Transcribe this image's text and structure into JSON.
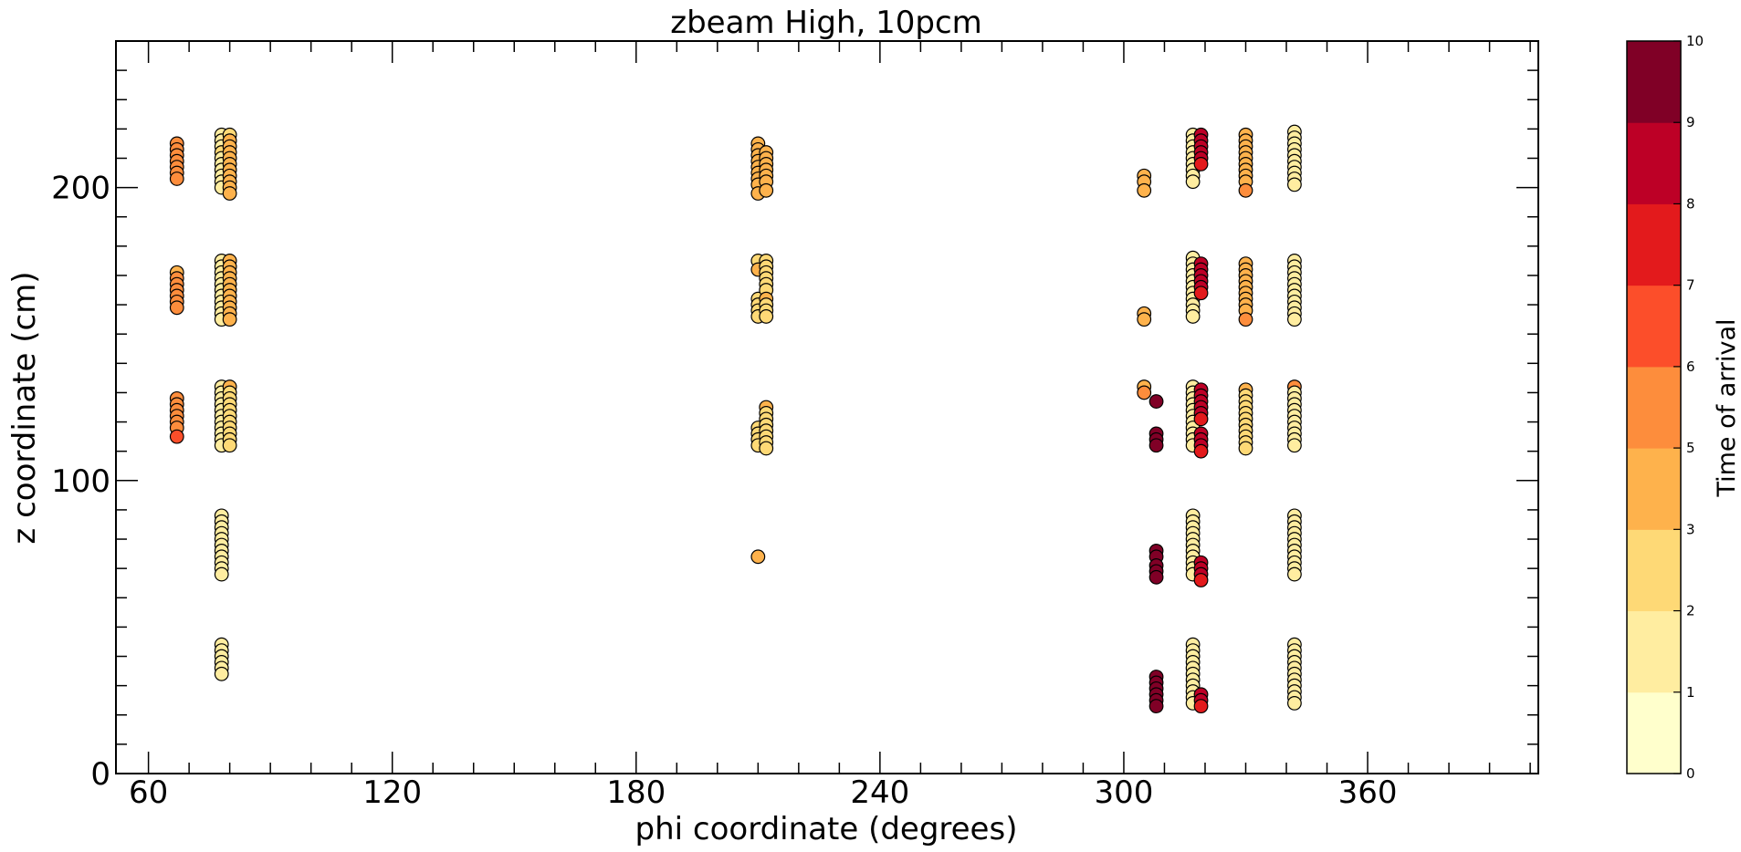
{
  "chart_data": {
    "type": "scatter",
    "title": "zbeam High, 10pcm",
    "xlabel": "phi coordinate (degrees)",
    "ylabel": "z coordinate (cm)",
    "xlim": [
      52,
      402
    ],
    "ylim": [
      0,
      250
    ],
    "x_ticks": [
      60,
      120,
      180,
      240,
      300,
      360
    ],
    "y_ticks": [
      0,
      100,
      200
    ],
    "grid": false,
    "legend": "none",
    "colorbar": {
      "label": "Time of arrival",
      "range": [
        0,
        10
      ],
      "boundaries": [
        0,
        1,
        2,
        3,
        5,
        6,
        7,
        8,
        9,
        10
      ],
      "tick_labels": [
        "0",
        "1",
        "2",
        "3",
        "5",
        "6",
        "7",
        "8",
        "9",
        "10"
      ],
      "colors": [
        "#ffffcc",
        "#ffeda0",
        "#fed976",
        "#feb24c",
        "#fd8d3c",
        "#fc4e2a",
        "#e31a1c",
        "#bd0026",
        "#800026"
      ]
    },
    "points": [
      [
        67,
        215,
        5
      ],
      [
        67,
        213,
        5
      ],
      [
        67,
        211,
        5
      ],
      [
        67,
        209,
        5
      ],
      [
        67,
        207,
        5
      ],
      [
        67,
        205,
        5
      ],
      [
        67,
        203,
        5
      ],
      [
        67,
        171,
        4
      ],
      [
        67,
        169,
        5
      ],
      [
        67,
        167,
        5
      ],
      [
        67,
        165,
        5
      ],
      [
        67,
        163,
        5
      ],
      [
        67,
        161,
        5
      ],
      [
        67,
        159,
        5
      ],
      [
        67,
        128,
        5
      ],
      [
        67,
        126,
        5
      ],
      [
        67,
        124,
        5
      ],
      [
        67,
        122,
        5
      ],
      [
        67,
        120,
        5
      ],
      [
        67,
        118,
        5
      ],
      [
        67,
        115,
        6
      ],
      [
        78,
        218,
        1
      ],
      [
        78,
        216,
        1
      ],
      [
        78,
        214,
        1
      ],
      [
        78,
        212,
        2
      ],
      [
        78,
        210,
        1
      ],
      [
        78,
        208,
        1
      ],
      [
        78,
        206,
        1
      ],
      [
        78,
        204,
        1
      ],
      [
        78,
        202,
        1
      ],
      [
        78,
        200,
        1
      ],
      [
        78,
        175,
        1
      ],
      [
        78,
        173,
        1
      ],
      [
        78,
        171,
        1
      ],
      [
        78,
        169,
        1
      ],
      [
        78,
        167,
        1
      ],
      [
        78,
        165,
        1
      ],
      [
        78,
        163,
        1
      ],
      [
        78,
        161,
        1
      ],
      [
        78,
        159,
        1
      ],
      [
        78,
        157,
        1
      ],
      [
        78,
        155,
        1
      ],
      [
        78,
        132,
        1
      ],
      [
        78,
        130,
        1
      ],
      [
        78,
        128,
        1
      ],
      [
        78,
        126,
        1
      ],
      [
        78,
        124,
        1
      ],
      [
        78,
        122,
        1
      ],
      [
        78,
        120,
        1
      ],
      [
        78,
        118,
        1
      ],
      [
        78,
        116,
        1
      ],
      [
        78,
        114,
        1
      ],
      [
        78,
        112,
        1
      ],
      [
        78,
        88,
        1
      ],
      [
        78,
        86,
        1
      ],
      [
        78,
        84,
        1
      ],
      [
        78,
        82,
        1
      ],
      [
        78,
        80,
        1
      ],
      [
        78,
        78,
        1
      ],
      [
        78,
        76,
        1
      ],
      [
        78,
        74,
        1
      ],
      [
        78,
        72,
        1
      ],
      [
        78,
        70,
        1
      ],
      [
        78,
        68,
        1
      ],
      [
        78,
        44,
        1
      ],
      [
        78,
        42,
        1
      ],
      [
        78,
        40,
        1
      ],
      [
        78,
        38,
        1
      ],
      [
        78,
        36,
        1
      ],
      [
        78,
        34,
        1
      ],
      [
        80,
        218,
        2
      ],
      [
        80,
        216,
        3
      ],
      [
        80,
        214,
        3
      ],
      [
        80,
        212,
        3
      ],
      [
        80,
        210,
        3
      ],
      [
        80,
        208,
        3
      ],
      [
        80,
        206,
        3
      ],
      [
        80,
        204,
        3
      ],
      [
        80,
        202,
        3
      ],
      [
        80,
        200,
        3
      ],
      [
        80,
        198,
        3
      ],
      [
        80,
        175,
        3
      ],
      [
        80,
        173,
        3
      ],
      [
        80,
        171,
        3
      ],
      [
        80,
        169,
        3
      ],
      [
        80,
        167,
        3
      ],
      [
        80,
        165,
        4
      ],
      [
        80,
        163,
        4
      ],
      [
        80,
        161,
        4
      ],
      [
        80,
        159,
        4
      ],
      [
        80,
        157,
        4
      ],
      [
        80,
        155,
        4
      ],
      [
        80,
        132,
        3
      ],
      [
        80,
        130,
        2
      ],
      [
        80,
        128,
        2
      ],
      [
        80,
        126,
        2
      ],
      [
        80,
        124,
        2
      ],
      [
        80,
        122,
        2
      ],
      [
        80,
        120,
        2
      ],
      [
        80,
        118,
        2
      ],
      [
        80,
        116,
        2
      ],
      [
        80,
        114,
        2
      ],
      [
        80,
        112,
        2
      ],
      [
        210,
        215,
        3
      ],
      [
        210,
        213,
        3
      ],
      [
        210,
        211,
        3
      ],
      [
        210,
        209,
        3
      ],
      [
        210,
        207,
        3
      ],
      [
        210,
        205,
        3
      ],
      [
        210,
        203,
        3
      ],
      [
        210,
        201,
        3
      ],
      [
        210,
        198,
        3
      ],
      [
        210,
        175,
        2
      ],
      [
        210,
        172,
        3
      ],
      [
        210,
        162,
        2
      ],
      [
        210,
        160,
        2
      ],
      [
        210,
        158,
        2
      ],
      [
        210,
        156,
        2
      ],
      [
        210,
        118,
        2
      ],
      [
        210,
        116,
        2
      ],
      [
        210,
        114,
        2
      ],
      [
        210,
        112,
        2
      ],
      [
        210,
        74,
        3
      ],
      [
        212,
        212,
        3
      ],
      [
        212,
        210,
        3
      ],
      [
        212,
        208,
        3
      ],
      [
        212,
        206,
        3
      ],
      [
        212,
        204,
        3
      ],
      [
        212,
        202,
        3
      ],
      [
        212,
        199,
        3
      ],
      [
        212,
        175,
        2
      ],
      [
        212,
        173,
        2
      ],
      [
        212,
        171,
        2
      ],
      [
        212,
        169,
        2
      ],
      [
        212,
        167,
        2
      ],
      [
        212,
        165,
        2
      ],
      [
        212,
        162,
        3
      ],
      [
        212,
        160,
        2
      ],
      [
        212,
        158,
        2
      ],
      [
        212,
        156,
        2
      ],
      [
        212,
        125,
        3
      ],
      [
        212,
        123,
        2
      ],
      [
        212,
        121,
        2
      ],
      [
        212,
        119,
        2
      ],
      [
        212,
        117,
        2
      ],
      [
        212,
        115,
        2
      ],
      [
        212,
        113,
        2
      ],
      [
        212,
        111,
        2
      ],
      [
        305,
        204,
        3
      ],
      [
        305,
        202,
        3
      ],
      [
        305,
        199,
        4
      ],
      [
        305,
        157,
        4
      ],
      [
        305,
        155,
        4
      ],
      [
        305,
        132,
        4
      ],
      [
        305,
        130,
        5
      ],
      [
        308,
        127,
        9
      ],
      [
        308,
        116,
        9
      ],
      [
        308,
        114,
        9
      ],
      [
        308,
        112,
        9
      ],
      [
        308,
        76,
        9
      ],
      [
        308,
        74,
        9
      ],
      [
        308,
        71,
        9
      ],
      [
        308,
        69,
        9
      ],
      [
        308,
        67,
        9
      ],
      [
        308,
        33,
        9
      ],
      [
        308,
        31,
        9
      ],
      [
        308,
        29,
        9
      ],
      [
        308,
        27,
        9
      ],
      [
        308,
        25,
        9
      ],
      [
        308,
        23,
        9
      ],
      [
        317,
        218,
        1
      ],
      [
        317,
        216,
        1
      ],
      [
        317,
        214,
        1
      ],
      [
        317,
        212,
        1
      ],
      [
        317,
        210,
        1
      ],
      [
        317,
        208,
        1
      ],
      [
        317,
        206,
        1
      ],
      [
        317,
        204,
        1
      ],
      [
        317,
        202,
        1
      ],
      [
        317,
        176,
        1
      ],
      [
        317,
        174,
        1
      ],
      [
        317,
        172,
        1
      ],
      [
        317,
        170,
        1
      ],
      [
        317,
        168,
        1
      ],
      [
        317,
        166,
        1
      ],
      [
        317,
        164,
        1
      ],
      [
        317,
        162,
        1
      ],
      [
        317,
        160,
        1
      ],
      [
        317,
        158,
        1
      ],
      [
        317,
        156,
        1
      ],
      [
        317,
        132,
        1
      ],
      [
        317,
        130,
        1
      ],
      [
        317,
        128,
        1
      ],
      [
        317,
        126,
        1
      ],
      [
        317,
        124,
        1
      ],
      [
        317,
        122,
        1
      ],
      [
        317,
        120,
        1
      ],
      [
        317,
        118,
        1
      ],
      [
        317,
        116,
        1
      ],
      [
        317,
        114,
        1
      ],
      [
        317,
        112,
        1
      ],
      [
        317,
        88,
        1
      ],
      [
        317,
        86,
        1
      ],
      [
        317,
        84,
        1
      ],
      [
        317,
        82,
        1
      ],
      [
        317,
        80,
        1
      ],
      [
        317,
        78,
        1
      ],
      [
        317,
        76,
        1
      ],
      [
        317,
        74,
        1
      ],
      [
        317,
        72,
        1
      ],
      [
        317,
        70,
        1
      ],
      [
        317,
        68,
        1
      ],
      [
        317,
        44,
        1
      ],
      [
        317,
        42,
        1
      ],
      [
        317,
        40,
        1
      ],
      [
        317,
        38,
        1
      ],
      [
        317,
        36,
        1
      ],
      [
        317,
        34,
        1
      ],
      [
        317,
        32,
        1
      ],
      [
        317,
        30,
        1
      ],
      [
        317,
        28,
        1
      ],
      [
        317,
        26,
        1
      ],
      [
        317,
        24,
        1
      ],
      [
        319,
        218,
        8
      ],
      [
        319,
        216,
        8
      ],
      [
        319,
        214,
        8
      ],
      [
        319,
        212,
        8
      ],
      [
        319,
        210,
        8
      ],
      [
        319,
        208,
        7
      ],
      [
        319,
        174,
        8
      ],
      [
        319,
        172,
        8
      ],
      [
        319,
        170,
        8
      ],
      [
        319,
        168,
        8
      ],
      [
        319,
        166,
        8
      ],
      [
        319,
        164,
        7
      ],
      [
        319,
        131,
        8
      ],
      [
        319,
        129,
        8
      ],
      [
        319,
        127,
        8
      ],
      [
        319,
        125,
        8
      ],
      [
        319,
        123,
        8
      ],
      [
        319,
        121,
        7
      ],
      [
        319,
        116,
        8
      ],
      [
        319,
        114,
        8
      ],
      [
        319,
        112,
        8
      ],
      [
        319,
        110,
        7
      ],
      [
        319,
        72,
        8
      ],
      [
        319,
        70,
        8
      ],
      [
        319,
        68,
        8
      ],
      [
        319,
        66,
        7
      ],
      [
        319,
        27,
        8
      ],
      [
        319,
        25,
        8
      ],
      [
        319,
        23,
        7
      ],
      [
        330,
        218,
        4
      ],
      [
        330,
        216,
        4
      ],
      [
        330,
        214,
        4
      ],
      [
        330,
        212,
        4
      ],
      [
        330,
        210,
        4
      ],
      [
        330,
        208,
        4
      ],
      [
        330,
        206,
        4
      ],
      [
        330,
        204,
        4
      ],
      [
        330,
        202,
        4
      ],
      [
        330,
        199,
        5
      ],
      [
        330,
        174,
        4
      ],
      [
        330,
        172,
        4
      ],
      [
        330,
        170,
        4
      ],
      [
        330,
        168,
        4
      ],
      [
        330,
        166,
        4
      ],
      [
        330,
        164,
        4
      ],
      [
        330,
        162,
        4
      ],
      [
        330,
        160,
        4
      ],
      [
        330,
        158,
        4
      ],
      [
        330,
        155,
        5
      ],
      [
        330,
        131,
        3
      ],
      [
        330,
        129,
        2
      ],
      [
        330,
        127,
        2
      ],
      [
        330,
        125,
        2
      ],
      [
        330,
        123,
        2
      ],
      [
        330,
        121,
        2
      ],
      [
        330,
        119,
        2
      ],
      [
        330,
        117,
        2
      ],
      [
        330,
        115,
        2
      ],
      [
        330,
        113,
        2
      ],
      [
        330,
        111,
        2
      ],
      [
        342,
        219,
        1
      ],
      [
        342,
        217,
        1
      ],
      [
        342,
        215,
        1
      ],
      [
        342,
        213,
        1
      ],
      [
        342,
        211,
        1
      ],
      [
        342,
        209,
        1
      ],
      [
        342,
        207,
        1
      ],
      [
        342,
        205,
        1
      ],
      [
        342,
        203,
        1
      ],
      [
        342,
        201,
        1
      ],
      [
        342,
        175,
        1
      ],
      [
        342,
        173,
        1
      ],
      [
        342,
        171,
        1
      ],
      [
        342,
        169,
        1
      ],
      [
        342,
        167,
        1
      ],
      [
        342,
        165,
        1
      ],
      [
        342,
        163,
        1
      ],
      [
        342,
        161,
        1
      ],
      [
        342,
        159,
        1
      ],
      [
        342,
        157,
        1
      ],
      [
        342,
        155,
        1
      ],
      [
        342,
        132,
        5
      ],
      [
        342,
        130,
        1
      ],
      [
        342,
        128,
        1
      ],
      [
        342,
        126,
        1
      ],
      [
        342,
        124,
        1
      ],
      [
        342,
        122,
        1
      ],
      [
        342,
        120,
        1
      ],
      [
        342,
        118,
        1
      ],
      [
        342,
        116,
        1
      ],
      [
        342,
        114,
        1
      ],
      [
        342,
        112,
        1
      ],
      [
        342,
        88,
        1
      ],
      [
        342,
        86,
        1
      ],
      [
        342,
        84,
        1
      ],
      [
        342,
        82,
        1
      ],
      [
        342,
        80,
        1
      ],
      [
        342,
        78,
        1
      ],
      [
        342,
        76,
        1
      ],
      [
        342,
        74,
        1
      ],
      [
        342,
        72,
        1
      ],
      [
        342,
        70,
        1
      ],
      [
        342,
        68,
        1
      ],
      [
        342,
        44,
        1
      ],
      [
        342,
        42,
        1
      ],
      [
        342,
        40,
        1
      ],
      [
        342,
        38,
        1
      ],
      [
        342,
        36,
        1
      ],
      [
        342,
        34,
        1
      ],
      [
        342,
        32,
        1
      ],
      [
        342,
        30,
        1
      ],
      [
        342,
        28,
        1
      ],
      [
        342,
        26,
        1
      ],
      [
        342,
        24,
        1
      ]
    ]
  }
}
